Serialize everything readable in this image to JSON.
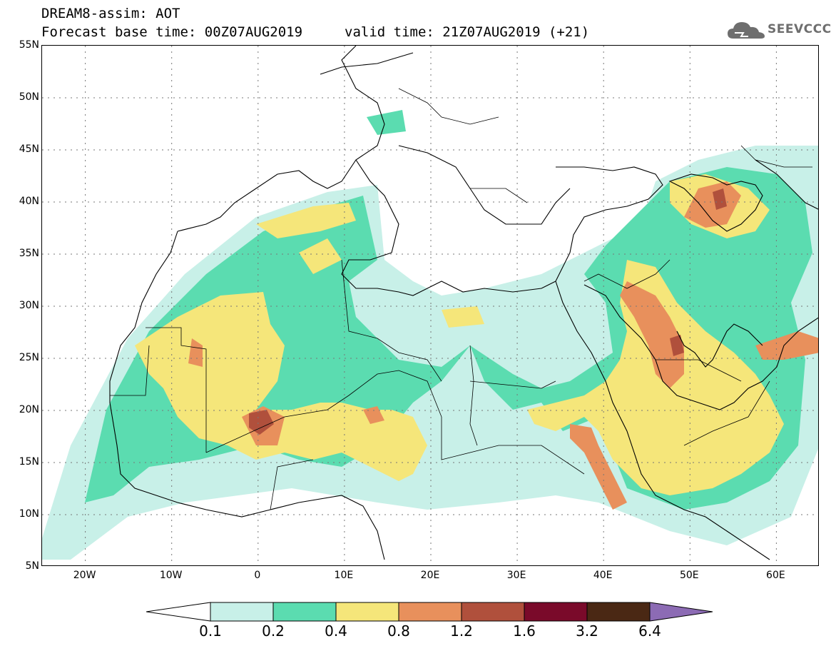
{
  "title": {
    "line1": "DREAM8-assim: AOT",
    "line2": "Forecast base time: 00Z07AUG2019",
    "valid": "valid time: 21Z07AUG2019 (+21)"
  },
  "logo": {
    "text": "SEEVCCC",
    "icon": "cloud-icon",
    "color": "#6e6e6e"
  },
  "axes": {
    "lat_labels": [
      "55N",
      "50N",
      "45N",
      "40N",
      "35N",
      "30N",
      "25N",
      "20N",
      "15N",
      "10N",
      "5N"
    ],
    "lat_values": [
      55,
      50,
      45,
      40,
      35,
      30,
      25,
      20,
      15,
      10,
      5
    ],
    "lon_labels": [
      "20W",
      "10W",
      "0",
      "10E",
      "20E",
      "30E",
      "40E",
      "50E",
      "60E"
    ],
    "lon_values": [
      -20,
      -10,
      0,
      10,
      20,
      30,
      40,
      50,
      60
    ],
    "lon_range": [
      -25,
      65
    ],
    "lat_range": [
      5,
      55
    ],
    "grid": "dotted"
  },
  "colorbar": {
    "labels": [
      "0.1",
      "0.2",
      "0.4",
      "0.8",
      "1.2",
      "1.6",
      "3.2",
      "6.4"
    ],
    "colors": [
      "#ffffff",
      "#c8f0e8",
      "#5bdcb0",
      "#f5e67a",
      "#e8905c",
      "#b0503c",
      "#7a0a2a",
      "#4a2814",
      "#8c6bb4"
    ]
  }
}
